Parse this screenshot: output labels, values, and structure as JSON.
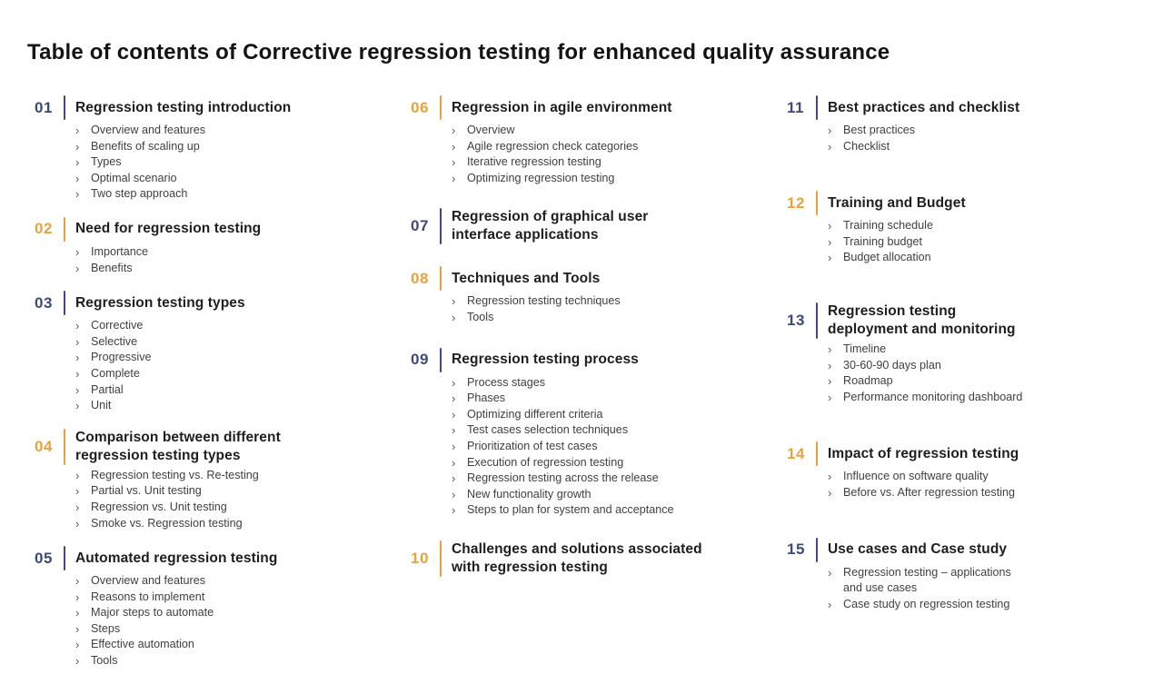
{
  "title": "Table of contents of Corrective regression testing for enhanced quality assurance",
  "colors": {
    "navy": "#3F4A7C",
    "orange": "#E8A33E",
    "heading_text": "#1E1E1E",
    "item_text": "#3F3F3F"
  },
  "chevron_glyph": "›",
  "columns": [
    {
      "sections": [
        {
          "number": "01",
          "accent": "navy",
          "heading": "Regression testing introduction",
          "items": [
            "Overview and features",
            "Benefits of scaling up",
            "Types",
            "Optimal scenario",
            "Two step approach"
          ]
        },
        {
          "number": "02",
          "accent": "orange",
          "heading": "Need for regression testing",
          "items": [
            "Importance",
            "Benefits"
          ]
        },
        {
          "number": "03",
          "accent": "navy",
          "heading": "Regression testing types",
          "items": [
            "Corrective",
            "Selective",
            "Progressive",
            "Complete",
            "Partial",
            "Unit"
          ]
        },
        {
          "number": "04",
          "accent": "orange",
          "heading": "Comparison between different\nregression testing types",
          "items": [
            "Regression testing vs. Re-testing",
            "Partial vs. Unit testing",
            "Regression vs. Unit testing",
            "Smoke vs. Regression testing"
          ]
        },
        {
          "number": "05",
          "accent": "navy",
          "heading": "Automated regression testing",
          "items": [
            "Overview and features",
            "Reasons to implement",
            "Major steps to automate",
            "Steps",
            "Effective automation",
            "Tools"
          ]
        }
      ]
    },
    {
      "sections": [
        {
          "number": "06",
          "accent": "orange",
          "heading": "Regression in agile environment",
          "items": [
            "Overview",
            "Agile regression check categories",
            "Iterative regression testing",
            "Optimizing regression testing"
          ]
        },
        {
          "number": "07",
          "accent": "navy",
          "heading": "Regression of graphical user\ninterface applications",
          "items": []
        },
        {
          "number": "08",
          "accent": "orange",
          "heading": "Techniques and Tools",
          "items": [
            "Regression testing techniques",
            "Tools"
          ]
        },
        {
          "number": "09",
          "accent": "navy",
          "heading": "Regression testing process",
          "items": [
            "Process stages",
            "Phases",
            "Optimizing different criteria",
            "Test cases selection techniques",
            "Prioritization of test cases",
            "Execution of regression testing",
            "Regression testing across the release",
            "New functionality growth",
            "Steps to plan for system and acceptance"
          ]
        },
        {
          "number": "10",
          "accent": "orange",
          "heading": "Challenges and solutions associated\nwith regression testing",
          "items": []
        }
      ]
    },
    {
      "sections": [
        {
          "number": "11",
          "accent": "navy",
          "heading": "Best practices and checklist",
          "items": [
            "Best practices",
            "Checklist"
          ]
        },
        {
          "number": "12",
          "accent": "orange",
          "heading": "Training and Budget",
          "items": [
            "Training schedule",
            "Training budget",
            "Budget allocation"
          ]
        },
        {
          "number": "13",
          "accent": "navy",
          "heading": "Regression testing\ndeployment and monitoring",
          "items": [
            "Timeline",
            "30-60-90 days plan",
            "Roadmap",
            "Performance monitoring dashboard"
          ]
        },
        {
          "number": "14",
          "accent": "orange",
          "heading": "Impact of regression testing",
          "items": [
            "Influence on software quality",
            "Before vs. After regression testing"
          ]
        },
        {
          "number": "15",
          "accent": "navy",
          "heading": "Use cases and Case study",
          "items": [
            "Regression testing – applications\nand use cases",
            "Case study on regression testing"
          ]
        }
      ]
    }
  ]
}
